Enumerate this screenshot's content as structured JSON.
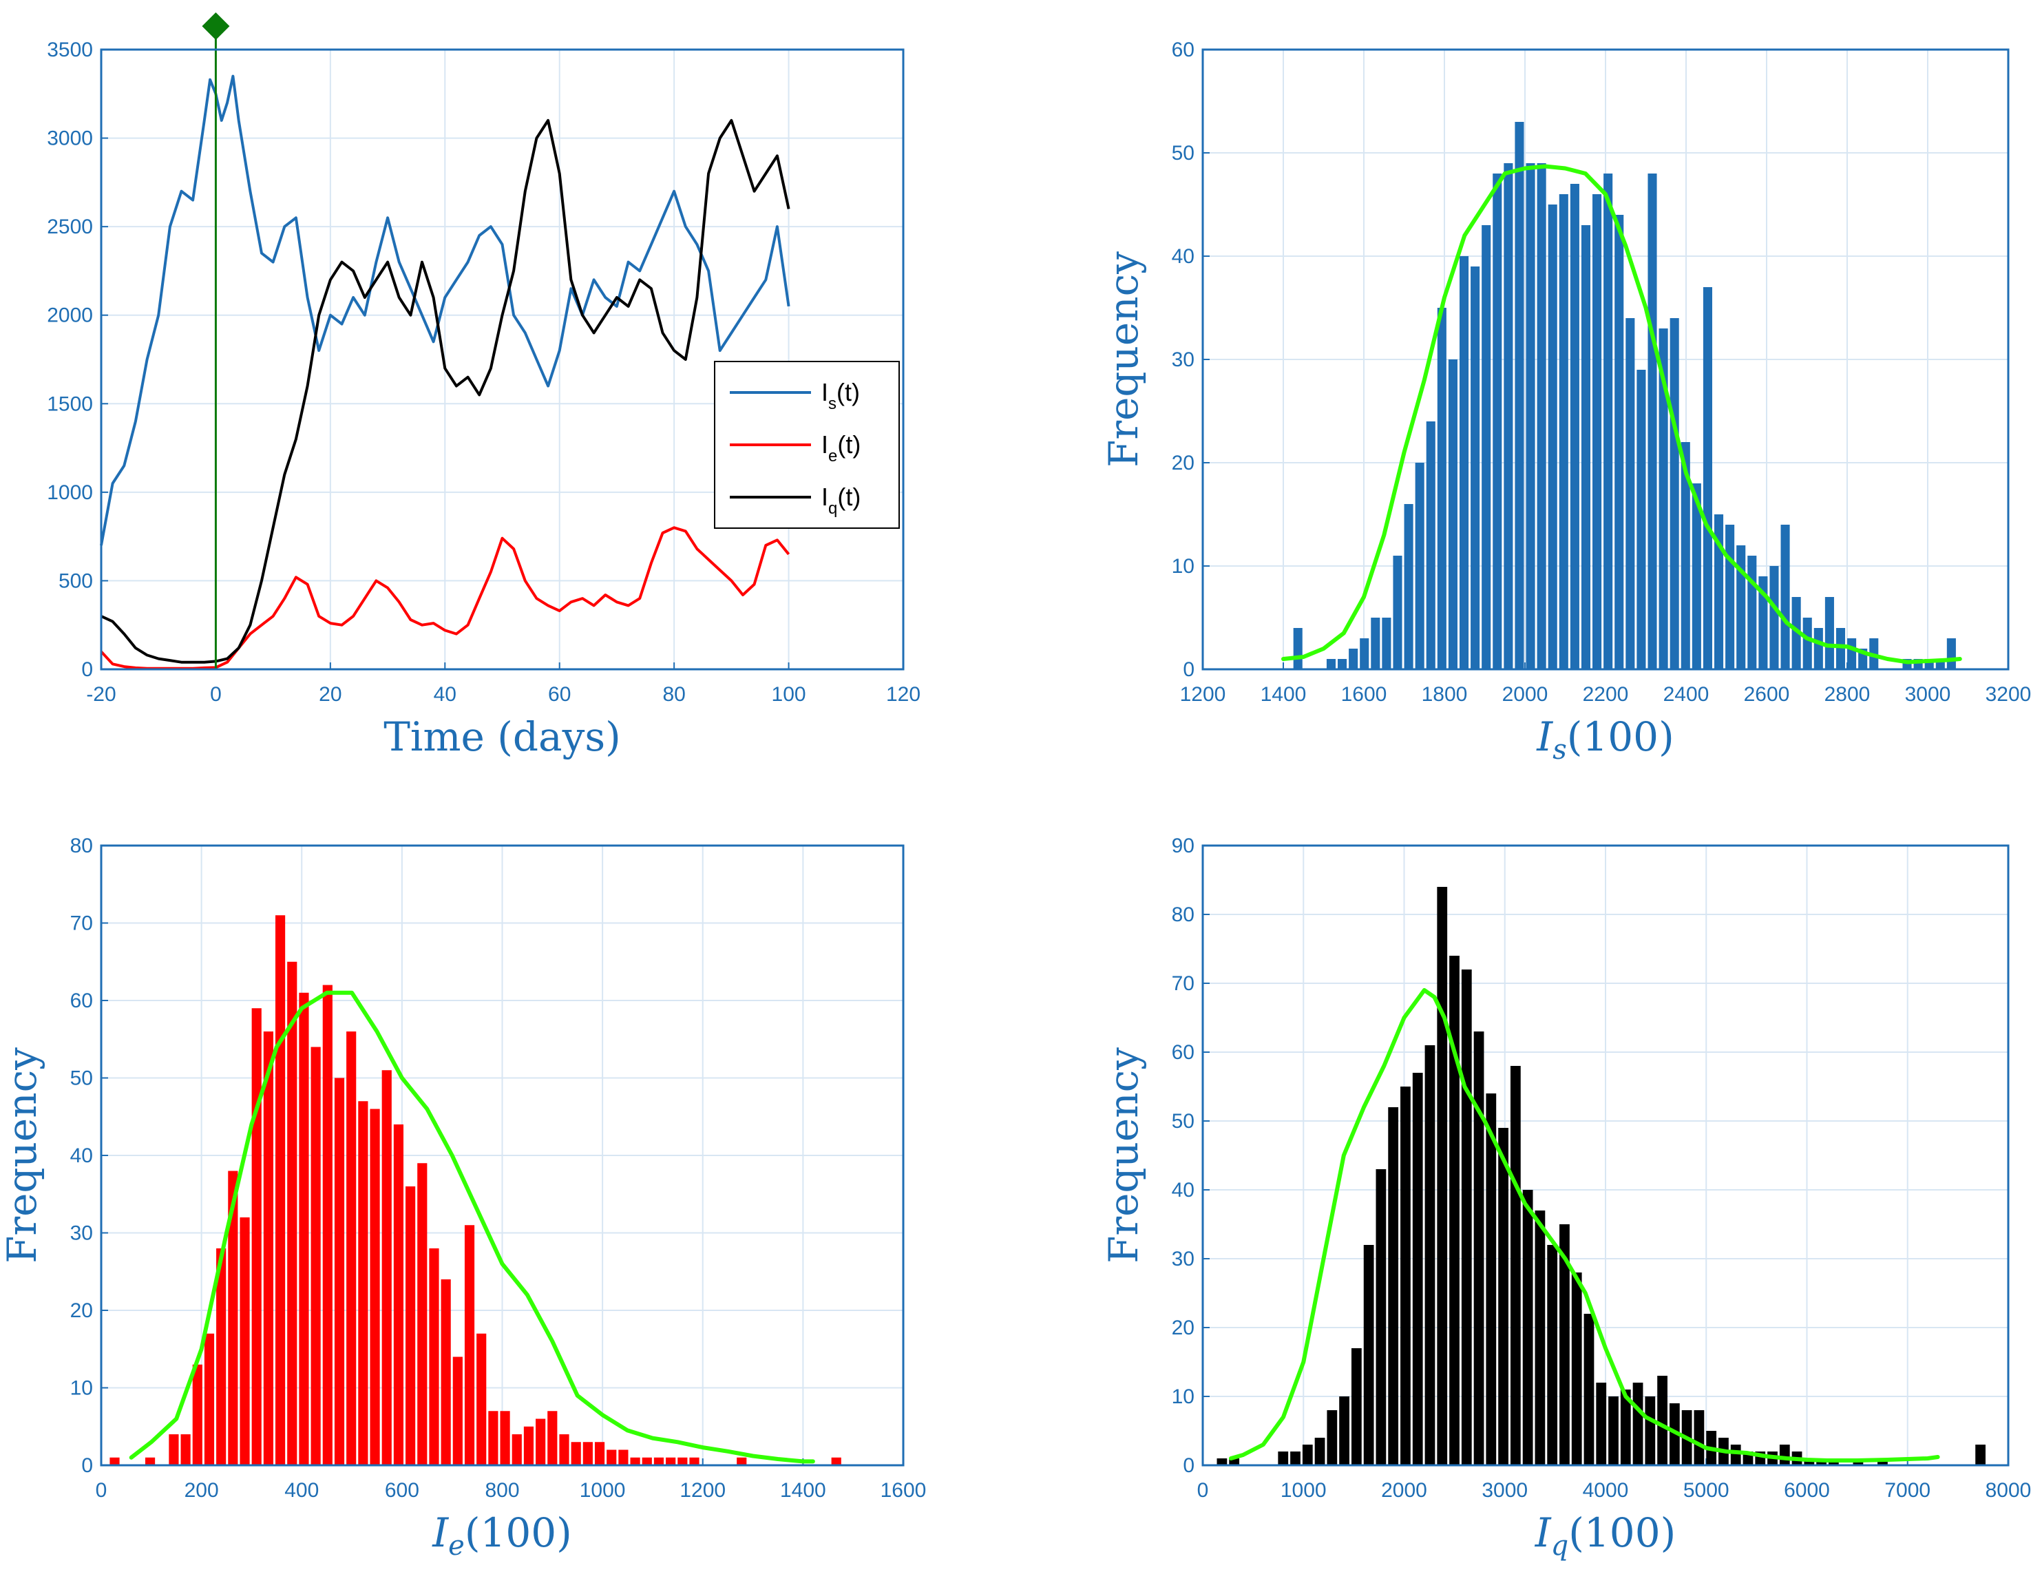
{
  "colors": {
    "axis": "#1f6eb4",
    "grid": "#d8e6f3",
    "series_Is": "#1f6eb4",
    "series_Ie": "#ff0000",
    "series_Iq": "#000000",
    "density": "#33ff00",
    "marker": "#0a7a0a"
  },
  "chart_data": [
    {
      "id": "timeseries",
      "type": "line",
      "title": "",
      "xlabel": "Time (days)",
      "ylabel": "",
      "xlim": [
        -20,
        120
      ],
      "ylim": [
        0,
        3500
      ],
      "xticks": [
        -20,
        0,
        20,
        40,
        60,
        80,
        100,
        120
      ],
      "yticks": [
        0,
        500,
        1000,
        1500,
        2000,
        2500,
        3000,
        3500
      ],
      "grid": true,
      "legend_position": "center-right",
      "vertical_marker": {
        "x": 0,
        "label": "marker-diamond"
      },
      "series": [
        {
          "name": "I_s(t)",
          "legend_main": "I",
          "legend_sub": "s",
          "legend_tail": "(t)",
          "color_key": "series_Is",
          "x": [
            -20,
            -18,
            -16,
            -14,
            -12,
            -10,
            -8,
            -6,
            -4,
            -2,
            -1,
            0,
            1,
            2,
            3,
            4,
            6,
            8,
            10,
            12,
            14,
            16,
            18,
            20,
            22,
            24,
            26,
            28,
            30,
            32,
            34,
            36,
            38,
            40,
            42,
            44,
            46,
            48,
            50,
            52,
            54,
            56,
            58,
            60,
            62,
            64,
            66,
            68,
            70,
            72,
            74,
            76,
            78,
            80,
            82,
            84,
            86,
            88,
            90,
            92,
            94,
            96,
            98,
            100
          ],
          "values": [
            700,
            1050,
            1150,
            1400,
            1750,
            2000,
            2500,
            2700,
            2650,
            3100,
            3330,
            3250,
            3100,
            3200,
            3350,
            3100,
            2700,
            2350,
            2300,
            2500,
            2550,
            2100,
            1800,
            2000,
            1950,
            2100,
            2000,
            2300,
            2550,
            2300,
            2150,
            2000,
            1850,
            2100,
            2200,
            2300,
            2450,
            2500,
            2400,
            2000,
            1900,
            1750,
            1600,
            1800,
            2150,
            2000,
            2200,
            2100,
            2050,
            2300,
            2250,
            2400,
            2550,
            2700,
            2500,
            2400,
            2250,
            1800,
            1900,
            2000,
            2100,
            2200,
            2500,
            2050
          ]
        },
        {
          "name": "I_e(t)",
          "legend_main": "I",
          "legend_sub": "e",
          "legend_tail": "(t)",
          "color_key": "series_Ie",
          "x": [
            -20,
            -18,
            -16,
            -14,
            -12,
            -10,
            -8,
            -6,
            -4,
            -2,
            0,
            2,
            4,
            6,
            8,
            10,
            12,
            14,
            16,
            18,
            20,
            22,
            24,
            26,
            28,
            30,
            32,
            34,
            36,
            38,
            40,
            42,
            44,
            46,
            48,
            50,
            52,
            54,
            56,
            58,
            60,
            62,
            64,
            66,
            68,
            70,
            72,
            74,
            76,
            78,
            80,
            82,
            84,
            86,
            88,
            90,
            92,
            94,
            96,
            98,
            100
          ],
          "values": [
            100,
            30,
            15,
            8,
            5,
            5,
            5,
            5,
            5,
            8,
            10,
            40,
            120,
            200,
            250,
            300,
            400,
            520,
            480,
            300,
            260,
            250,
            300,
            400,
            500,
            460,
            380,
            280,
            250,
            260,
            220,
            200,
            250,
            400,
            550,
            740,
            680,
            500,
            400,
            360,
            330,
            380,
            400,
            360,
            420,
            380,
            360,
            400,
            600,
            770,
            800,
            780,
            680,
            620,
            560,
            500,
            420,
            480,
            700,
            730,
            650
          ]
        },
        {
          "name": "I_q(t)",
          "legend_main": "I",
          "legend_sub": "q",
          "legend_tail": "(t)",
          "color_key": "series_Iq",
          "x": [
            -20,
            -18,
            -16,
            -14,
            -12,
            -10,
            -8,
            -6,
            -4,
            -2,
            0,
            2,
            4,
            6,
            8,
            10,
            12,
            14,
            16,
            18,
            20,
            22,
            24,
            26,
            28,
            30,
            32,
            34,
            36,
            38,
            40,
            42,
            44,
            46,
            48,
            50,
            52,
            54,
            56,
            58,
            60,
            62,
            64,
            66,
            68,
            70,
            72,
            74,
            76,
            78,
            80,
            82,
            84,
            86,
            88,
            90,
            92,
            94,
            96,
            98,
            100
          ],
          "values": [
            300,
            270,
            200,
            120,
            80,
            60,
            50,
            40,
            40,
            40,
            45,
            60,
            120,
            250,
            500,
            800,
            1100,
            1300,
            1600,
            2000,
            2200,
            2300,
            2250,
            2100,
            2200,
            2300,
            2100,
            2000,
            2300,
            2100,
            1700,
            1600,
            1650,
            1550,
            1700,
            2000,
            2250,
            2700,
            3000,
            3100,
            2800,
            2200,
            2000,
            1900,
            2000,
            2100,
            2050,
            2200,
            2150,
            1900,
            1800,
            1750,
            2100,
            2800,
            3000,
            3100,
            2900,
            2700,
            2800,
            2900,
            2600
          ]
        }
      ],
      "legend": [
        "I_s(t)",
        "I_e(t)",
        "I_q(t)"
      ]
    },
    {
      "id": "hist-is",
      "type": "bar",
      "xlabel_main": "I",
      "xlabel_sub": "s",
      "xlabel_tail": "(100)",
      "ylabel": "Frequency",
      "xlim": [
        1200,
        3200
      ],
      "ylim": [
        0,
        60
      ],
      "xticks": [
        1200,
        1400,
        1600,
        1800,
        2000,
        2200,
        2400,
        2600,
        2800,
        3000,
        3200
      ],
      "yticks": [
        0,
        10,
        20,
        30,
        40,
        50,
        60
      ],
      "grid": true,
      "bar_color_key": "series_Is",
      "bin_start": 1395,
      "bin_width": 27.5,
      "counts": [
        0,
        4,
        0,
        0,
        1,
        1,
        2,
        3,
        5,
        5,
        11,
        16,
        20,
        24,
        35,
        30,
        40,
        39,
        43,
        48,
        49,
        53,
        49,
        49,
        45,
        46,
        47,
        43,
        46,
        48,
        44,
        34,
        29,
        48,
        33,
        34,
        22,
        18,
        37,
        15,
        14,
        12,
        11,
        9,
        10,
        14,
        7,
        5,
        4,
        7,
        4,
        3,
        2,
        3,
        0,
        0,
        1,
        1,
        1,
        1,
        3
      ],
      "density_x": [
        1400,
        1450,
        1500,
        1550,
        1600,
        1650,
        1700,
        1750,
        1800,
        1850,
        1900,
        1950,
        2000,
        2050,
        2100,
        2150,
        2200,
        2250,
        2300,
        2350,
        2400,
        2450,
        2500,
        2550,
        2600,
        2650,
        2700,
        2750,
        2800,
        2850,
        2900,
        2950,
        3000,
        3050,
        3080
      ],
      "density_y": [
        1,
        1.2,
        2,
        3.5,
        7,
        13,
        21,
        28,
        36,
        42,
        45,
        48,
        48.5,
        48.7,
        48.5,
        48,
        46,
        41,
        35,
        27,
        19,
        14,
        11,
        9,
        7,
        4.5,
        3,
        2.3,
        2.2,
        1.5,
        1,
        0.7,
        0.8,
        0.9,
        1
      ]
    },
    {
      "id": "hist-ie",
      "type": "bar",
      "xlabel_main": "I",
      "xlabel_sub": "e",
      "xlabel_tail": "(100)",
      "ylabel": "Frequency",
      "xlim": [
        0,
        1600
      ],
      "ylim": [
        0,
        80
      ],
      "xticks": [
        0,
        200,
        400,
        600,
        800,
        1000,
        1200,
        1400,
        1600
      ],
      "yticks": [
        0,
        10,
        20,
        30,
        40,
        50,
        60,
        70,
        80
      ],
      "grid": true,
      "bar_color_key": "series_Ie",
      "bin_start": 15,
      "bin_width": 23.6,
      "counts": [
        1,
        0,
        0,
        1,
        0,
        4,
        4,
        13,
        17,
        28,
        38,
        32,
        59,
        56,
        71,
        65,
        61,
        54,
        62,
        50,
        56,
        47,
        46,
        51,
        44,
        36,
        39,
        28,
        24,
        14,
        31,
        17,
        7,
        7,
        4,
        5,
        6,
        7,
        4,
        3,
        3,
        3,
        2,
        2,
        1,
        1,
        1,
        1,
        1,
        1,
        0,
        0,
        0,
        1,
        0,
        0,
        0,
        0,
        0,
        0,
        0,
        1
      ],
      "density_x": [
        60,
        100,
        150,
        200,
        250,
        300,
        350,
        400,
        450,
        500,
        550,
        600,
        650,
        700,
        750,
        800,
        850,
        900,
        950,
        1000,
        1050,
        1100,
        1150,
        1200,
        1250,
        1300,
        1350,
        1400,
        1420
      ],
      "density_y": [
        1,
        3,
        6,
        15,
        30,
        44,
        54,
        59,
        61,
        61,
        56,
        50,
        46,
        40,
        33,
        26,
        22,
        16,
        9,
        6.5,
        4.5,
        3.5,
        3,
        2.3,
        1.8,
        1.2,
        0.8,
        0.5,
        0.5
      ]
    },
    {
      "id": "hist-iq",
      "type": "bar",
      "xlabel_main": "I",
      "xlabel_sub": "q",
      "xlabel_tail": "(100)",
      "ylabel": "Frequency",
      "xlim": [
        0,
        8000
      ],
      "ylim": [
        0,
        90
      ],
      "xticks": [
        0,
        1000,
        2000,
        3000,
        4000,
        5000,
        6000,
        7000,
        8000
      ],
      "yticks": [
        0,
        10,
        20,
        30,
        40,
        50,
        60,
        70,
        80,
        90
      ],
      "grid": true,
      "bar_color_key": "series_Iq",
      "bin_start": 130,
      "bin_width": 121.5,
      "counts": [
        1,
        1,
        0,
        0,
        0,
        2,
        2,
        3,
        4,
        8,
        10,
        17,
        32,
        43,
        52,
        55,
        57,
        61,
        84,
        74,
        72,
        63,
        54,
        49,
        58,
        40,
        37,
        32,
        35,
        28,
        22,
        12,
        10,
        11,
        12,
        10,
        13,
        9,
        8,
        8,
        5,
        4,
        3,
        2,
        2,
        2,
        3,
        2,
        1,
        1,
        1,
        0,
        1,
        0,
        1,
        0,
        0,
        0,
        0,
        0,
        0,
        0,
        3
      ],
      "density_x": [
        280,
        400,
        600,
        800,
        1000,
        1200,
        1400,
        1600,
        1800,
        2000,
        2200,
        2300,
        2400,
        2600,
        2800,
        3000,
        3200,
        3400,
        3600,
        3800,
        4000,
        4200,
        4400,
        4600,
        4800,
        5000,
        5200,
        5400,
        5600,
        5800,
        6000,
        6200,
        6500,
        6800,
        7000,
        7200,
        7300
      ],
      "density_y": [
        1,
        1.5,
        3,
        7,
        15,
        30,
        45,
        52,
        58,
        65,
        69,
        68,
        65,
        55,
        50,
        44,
        38,
        34,
        30,
        25,
        17,
        10,
        7,
        5.5,
        4,
        2.5,
        2,
        1.8,
        1.3,
        1,
        0.8,
        0.7,
        0.7,
        0.8,
        0.9,
        1,
        1.2
      ]
    }
  ]
}
